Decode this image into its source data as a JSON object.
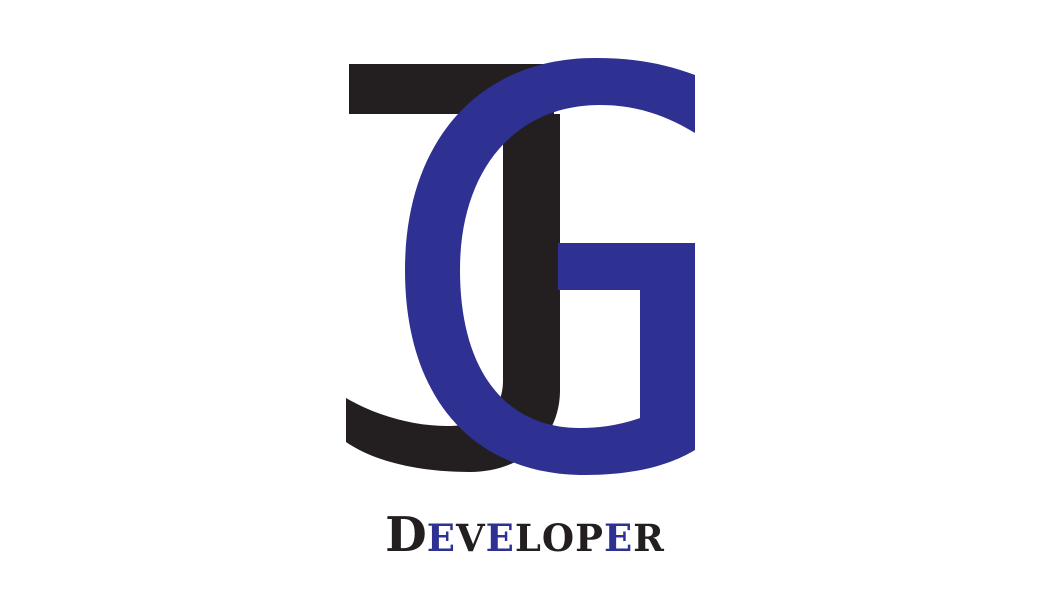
{
  "logo": {
    "letters": "JG",
    "colors": {
      "j_letter": "#231f20",
      "g_letter": "#2e3192"
    }
  },
  "wordmark": {
    "text": "Developer",
    "letters": [
      "D",
      "e",
      "v",
      "e",
      "l",
      "o",
      "p",
      "e",
      "r"
    ],
    "accent_letter_indices": [
      1,
      3,
      7
    ],
    "colors": {
      "primary": "#231f20",
      "accent": "#2e3192"
    }
  }
}
